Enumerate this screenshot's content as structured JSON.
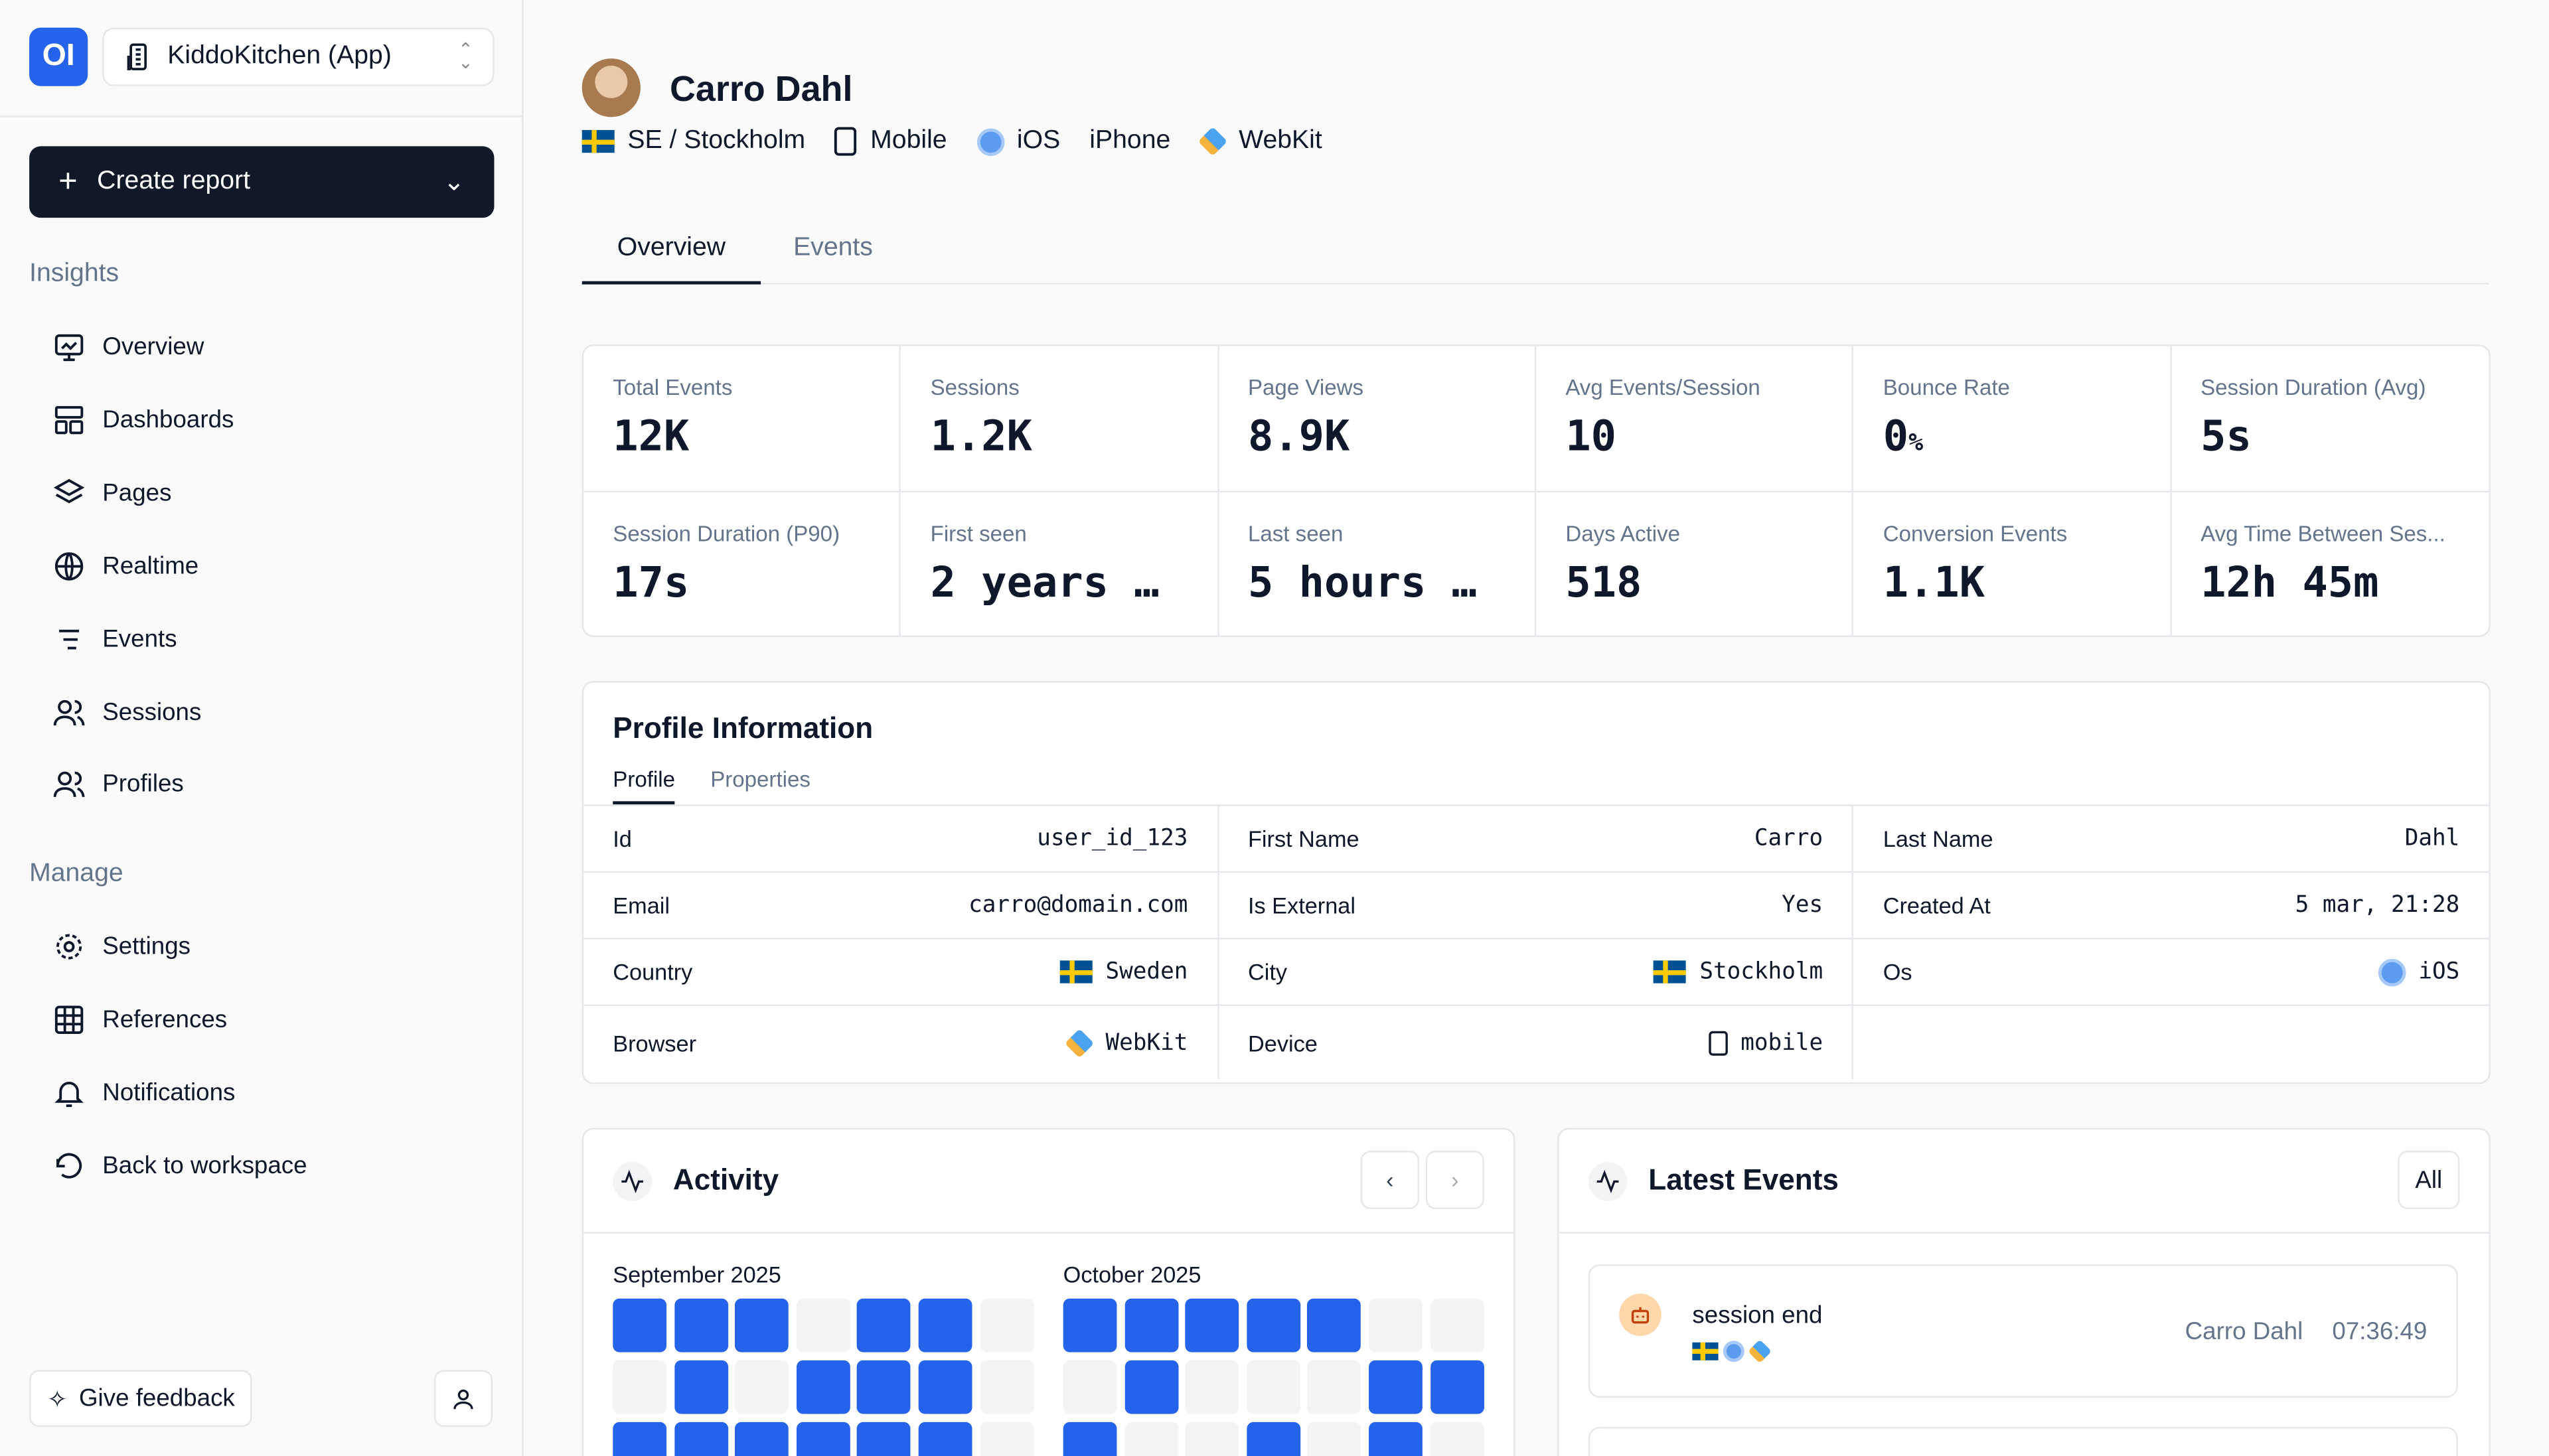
{
  "sidebar": {
    "logo": "OI",
    "project": "KiddoKitchen (App)",
    "create_report": "Create report",
    "sections": [
      {
        "label": "Insights"
      },
      {
        "label": "Manage"
      }
    ],
    "items": [
      {
        "label": "Overview",
        "icon": "monitor-icon"
      },
      {
        "label": "Dashboards",
        "icon": "layout-icon"
      },
      {
        "label": "Pages",
        "icon": "layers-icon"
      },
      {
        "label": "Realtime",
        "icon": "globe-icon"
      },
      {
        "label": "Events",
        "icon": "list-icon"
      },
      {
        "label": "Sessions",
        "icon": "users-icon"
      },
      {
        "label": "Profiles",
        "icon": "users-icon"
      },
      {
        "label": "Settings",
        "icon": "gear-icon"
      },
      {
        "label": "References",
        "icon": "grid-icon"
      },
      {
        "label": "Notifications",
        "icon": "bell-icon"
      },
      {
        "label": "Back to workspace",
        "icon": "undo-icon"
      }
    ],
    "feedback": "Give feedback"
  },
  "profile": {
    "name": "Carro Dahl",
    "location": "SE / Stockholm",
    "device": "Mobile",
    "os": "iOS",
    "model": "iPhone",
    "browser": "WebKit"
  },
  "tabs": [
    {
      "label": "Overview"
    },
    {
      "label": "Events"
    }
  ],
  "stats": [
    {
      "label": "Total Events",
      "value": "12K"
    },
    {
      "label": "Sessions",
      "value": "1.2K"
    },
    {
      "label": "Page Views",
      "value": "8.9K"
    },
    {
      "label": "Avg Events/Session",
      "value": "10"
    },
    {
      "label": "Bounce Rate",
      "value": "0",
      "unit": "%"
    },
    {
      "label": "Session Duration (Avg)",
      "value": "5s"
    },
    {
      "label": "Session Duration (P90)",
      "value": "17s"
    },
    {
      "label": "First seen",
      "value": "2 years …"
    },
    {
      "label": "Last seen",
      "value": "5 hours …"
    },
    {
      "label": "Days Active",
      "value": "518"
    },
    {
      "label": "Conversion Events",
      "value": "1.1K"
    },
    {
      "label": "Avg Time Between Ses...",
      "value": "12h 45m"
    }
  ],
  "profile_info": {
    "title": "Profile Information",
    "tabs": [
      "Profile",
      "Properties"
    ],
    "rows": [
      {
        "label": "Id",
        "value": "user_id_123"
      },
      {
        "label": "First Name",
        "value": "Carro"
      },
      {
        "label": "Last Name",
        "value": "Dahl"
      },
      {
        "label": "Email",
        "value": "carro@domain.com"
      },
      {
        "label": "Is External",
        "value": "Yes"
      },
      {
        "label": "Created At",
        "value": "5 mar, 21:28"
      },
      {
        "label": "Country",
        "value": "Sweden"
      },
      {
        "label": "City",
        "value": "Stockholm"
      },
      {
        "label": "Os",
        "value": "iOS"
      },
      {
        "label": "Browser",
        "value": "WebKit"
      },
      {
        "label": "Device",
        "value": "mobile"
      }
    ]
  },
  "activity": {
    "title": "Activity",
    "active_color": "#2563eb",
    "months": [
      {
        "label": "September 2025",
        "days": [
          1,
          1,
          1,
          0,
          1,
          1,
          0,
          0,
          1,
          0,
          1,
          1,
          1,
          0,
          1,
          1,
          1,
          1,
          1,
          1,
          0
        ]
      },
      {
        "label": "October 2025",
        "days": [
          1,
          1,
          1,
          1,
          1,
          0,
          0,
          0,
          1,
          0,
          0,
          0,
          1,
          1,
          1,
          0,
          0,
          1,
          0,
          1,
          0
        ]
      }
    ]
  },
  "latest_events": {
    "title": "Latest Events",
    "filter": "All",
    "events": [
      {
        "name": "session end",
        "user": "Carro Dahl",
        "time": "07:36:49"
      }
    ]
  }
}
